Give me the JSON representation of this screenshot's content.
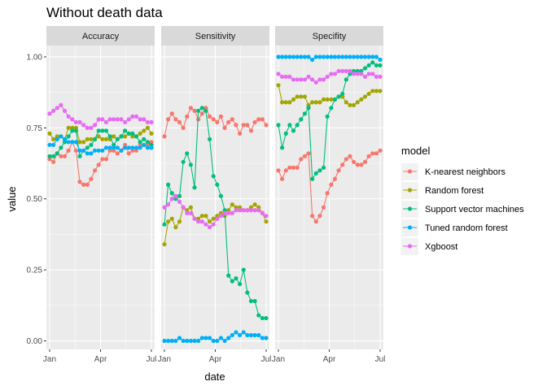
{
  "chart_data": {
    "type": "line",
    "title": "Without death data",
    "xlabel": "date",
    "ylabel": "value",
    "x_ticks": [
      "Jan",
      "Apr",
      "Jul"
    ],
    "y_ticks": [
      "0.00",
      "0.25",
      "0.50",
      "0.75",
      "1.00"
    ],
    "ylim": [
      -0.03,
      1.04
    ],
    "grid": true,
    "legend_title": "model",
    "legend_position": "right",
    "facets": [
      "Accuracy",
      "Sensitivity",
      "Specifity"
    ],
    "series": [
      {
        "name": "K-nearest neighbors",
        "color": "#F8766D"
      },
      {
        "name": "Random forest",
        "color": "#A3A500"
      },
      {
        "name": "Support vector machines",
        "color": "#00BF7D"
      },
      {
        "name": "Tuned random forest",
        "color": "#00B0F6"
      },
      {
        "name": "Xgboost",
        "color": "#E76BF3"
      }
    ],
    "panels": [
      {
        "facet": "Accuracy",
        "values": [
          [
            0.64,
            0.63,
            0.66,
            0.65,
            0.65,
            0.67,
            0.7,
            0.67,
            0.56,
            0.55,
            0.55,
            0.57,
            0.6,
            0.62,
            0.64,
            0.64,
            0.67,
            0.67,
            0.66,
            0.67,
            0.69,
            0.66,
            0.67,
            0.67,
            0.69,
            0.69,
            0.69,
            0.7
          ],
          [
            0.73,
            0.71,
            0.72,
            0.72,
            0.71,
            0.75,
            0.75,
            0.75,
            0.7,
            0.7,
            0.71,
            0.71,
            0.71,
            0.72,
            0.71,
            0.71,
            0.71,
            0.72,
            0.71,
            0.72,
            0.72,
            0.73,
            0.72,
            0.72,
            0.73,
            0.74,
            0.75,
            0.73
          ],
          [
            0.65,
            0.65,
            0.66,
            0.68,
            0.7,
            0.72,
            0.74,
            0.74,
            0.65,
            0.67,
            0.68,
            0.69,
            0.71,
            0.74,
            0.74,
            0.74,
            0.72,
            0.69,
            0.71,
            0.72,
            0.74,
            0.73,
            0.73,
            0.72,
            0.7,
            0.71,
            0.7,
            0.69
          ],
          [
            0.69,
            0.69,
            0.71,
            0.72,
            0.71,
            0.7,
            0.7,
            0.7,
            0.67,
            0.67,
            0.66,
            0.66,
            0.67,
            0.67,
            0.67,
            0.68,
            0.68,
            0.68,
            0.68,
            0.67,
            0.68,
            0.68,
            0.68,
            0.68,
            0.68,
            0.69,
            0.68,
            0.68
          ],
          [
            0.8,
            0.81,
            0.82,
            0.83,
            0.81,
            0.79,
            0.78,
            0.77,
            0.77,
            0.76,
            0.75,
            0.75,
            0.76,
            0.78,
            0.78,
            0.77,
            0.78,
            0.78,
            0.78,
            0.78,
            0.77,
            0.78,
            0.79,
            0.79,
            0.78,
            0.78,
            0.77,
            0.77
          ]
        ]
      },
      {
        "facet": "Sensitivity",
        "values": [
          [
            0.72,
            0.78,
            0.8,
            0.78,
            0.77,
            0.75,
            0.79,
            0.82,
            0.81,
            0.78,
            0.8,
            0.82,
            0.79,
            0.78,
            0.77,
            0.79,
            0.75,
            0.77,
            0.78,
            0.76,
            0.73,
            0.76,
            0.76,
            0.74,
            0.77,
            0.78,
            0.78,
            0.76
          ],
          [
            0.34,
            0.42,
            0.43,
            0.4,
            0.42,
            0.47,
            0.46,
            0.47,
            0.43,
            0.43,
            0.44,
            0.44,
            0.42,
            0.43,
            0.44,
            0.45,
            0.44,
            0.46,
            0.48,
            0.47,
            0.47,
            0.46,
            0.46,
            0.47,
            0.48,
            0.47,
            0.45,
            0.42
          ],
          [
            0.41,
            0.55,
            0.52,
            0.5,
            0.51,
            0.63,
            0.66,
            0.62,
            0.54,
            0.81,
            0.82,
            0.81,
            0.71,
            0.58,
            0.55,
            0.51,
            0.46,
            0.23,
            0.21,
            0.22,
            0.2,
            0.25,
            0.17,
            0.14,
            0.14,
            0.09,
            0.08,
            0.08
          ],
          [
            0.0,
            0.0,
            0.0,
            0.0,
            0.01,
            0.0,
            0.0,
            0.0,
            0.0,
            0.0,
            0.01,
            0.01,
            0.01,
            0.0,
            0.0,
            0.01,
            0.0,
            0.01,
            0.02,
            0.03,
            0.02,
            0.03,
            0.02,
            0.02,
            0.02,
            0.02,
            0.01,
            0.01
          ],
          [
            0.47,
            0.48,
            0.5,
            0.51,
            0.49,
            0.47,
            0.45,
            0.45,
            0.43,
            0.42,
            0.42,
            0.41,
            0.4,
            0.41,
            0.43,
            0.44,
            0.45,
            0.45,
            0.45,
            0.46,
            0.46,
            0.46,
            0.46,
            0.46,
            0.46,
            0.46,
            0.45,
            0.44
          ]
        ]
      },
      {
        "facet": "Specifity",
        "values": [
          [
            0.6,
            0.57,
            0.6,
            0.61,
            0.61,
            0.61,
            0.64,
            0.65,
            0.66,
            0.44,
            0.42,
            0.44,
            0.47,
            0.52,
            0.55,
            0.57,
            0.6,
            0.62,
            0.64,
            0.65,
            0.63,
            0.62,
            0.62,
            0.63,
            0.65,
            0.66,
            0.66,
            0.67
          ],
          [
            0.9,
            0.84,
            0.84,
            0.84,
            0.85,
            0.86,
            0.86,
            0.86,
            0.83,
            0.84,
            0.84,
            0.84,
            0.85,
            0.85,
            0.85,
            0.85,
            0.86,
            0.86,
            0.84,
            0.83,
            0.83,
            0.84,
            0.85,
            0.86,
            0.87,
            0.88,
            0.88,
            0.88
          ],
          [
            0.76,
            0.68,
            0.73,
            0.76,
            0.74,
            0.76,
            0.78,
            0.8,
            0.82,
            0.57,
            0.59,
            0.6,
            0.61,
            0.79,
            0.82,
            0.85,
            0.86,
            0.87,
            0.92,
            0.94,
            0.95,
            0.95,
            0.95,
            0.96,
            0.97,
            0.98,
            0.97,
            0.97
          ],
          [
            1.0,
            1.0,
            1.0,
            1.0,
            1.0,
            1.0,
            1.0,
            1.0,
            1.0,
            0.99,
            1.0,
            1.0,
            1.0,
            1.0,
            1.0,
            1.0,
            1.0,
            1.0,
            1.0,
            1.0,
            1.0,
            1.0,
            1.0,
            1.0,
            1.0,
            1.0,
            1.0,
            0.99
          ],
          [
            0.94,
            0.93,
            0.93,
            0.93,
            0.92,
            0.92,
            0.92,
            0.92,
            0.93,
            0.92,
            0.91,
            0.92,
            0.92,
            0.93,
            0.94,
            0.94,
            0.95,
            0.95,
            0.95,
            0.95,
            0.94,
            0.94,
            0.94,
            0.93,
            0.94,
            0.94,
            0.93,
            0.93
          ]
        ]
      }
    ]
  }
}
